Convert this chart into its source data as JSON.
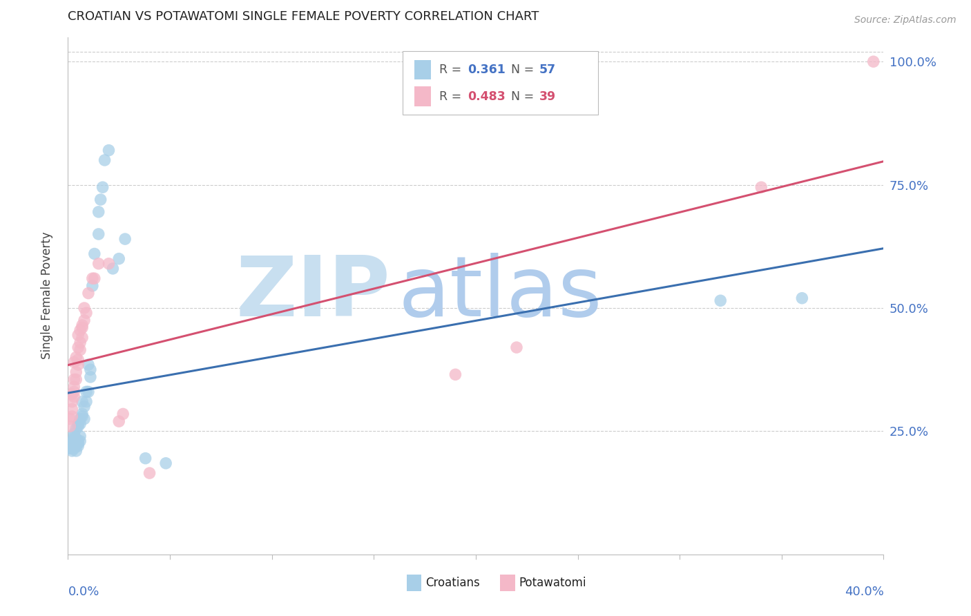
{
  "title": "CROATIAN VS POTAWATOMI SINGLE FEMALE POVERTY CORRELATION CHART",
  "source": "Source: ZipAtlas.com",
  "ylabel": "Single Female Poverty",
  "ytick_labels": [
    "25.0%",
    "50.0%",
    "75.0%",
    "100.0%"
  ],
  "ytick_positions": [
    0.25,
    0.5,
    0.75,
    1.0
  ],
  "legend_croatian_r": "0.361",
  "legend_croatian_n": "57",
  "legend_potawatomi_r": "0.483",
  "legend_potawatomi_n": "39",
  "blue_color": "#a8cfe8",
  "pink_color": "#f4b8c8",
  "blue_line_color": "#3a6faf",
  "pink_line_color": "#d45070",
  "blue_text_color": "#4472c4",
  "pink_text_color": "#d45070",
  "xlim": [
    0.0,
    0.4
  ],
  "ylim": [
    0.0,
    1.05
  ],
  "croatian_x": [
    0.001,
    0.001,
    0.001,
    0.002,
    0.002,
    0.002,
    0.002,
    0.002,
    0.002,
    0.003,
    0.003,
    0.003,
    0.003,
    0.003,
    0.003,
    0.003,
    0.004,
    0.004,
    0.004,
    0.004,
    0.004,
    0.004,
    0.005,
    0.005,
    0.005,
    0.005,
    0.005,
    0.006,
    0.006,
    0.006,
    0.006,
    0.007,
    0.007,
    0.007,
    0.008,
    0.008,
    0.009,
    0.009,
    0.01,
    0.01,
    0.011,
    0.011,
    0.012,
    0.013,
    0.015,
    0.015,
    0.016,
    0.017,
    0.018,
    0.02,
    0.022,
    0.025,
    0.028,
    0.038,
    0.048,
    0.32,
    0.36
  ],
  "croatian_y": [
    0.215,
    0.22,
    0.225,
    0.21,
    0.215,
    0.22,
    0.225,
    0.23,
    0.215,
    0.215,
    0.22,
    0.225,
    0.23,
    0.235,
    0.24,
    0.245,
    0.21,
    0.22,
    0.225,
    0.23,
    0.235,
    0.255,
    0.22,
    0.225,
    0.23,
    0.26,
    0.265,
    0.23,
    0.24,
    0.265,
    0.275,
    0.28,
    0.285,
    0.31,
    0.275,
    0.3,
    0.31,
    0.33,
    0.33,
    0.385,
    0.36,
    0.375,
    0.545,
    0.61,
    0.65,
    0.695,
    0.72,
    0.745,
    0.8,
    0.82,
    0.58,
    0.6,
    0.64,
    0.195,
    0.185,
    0.515,
    0.52
  ],
  "potawatomi_x": [
    0.001,
    0.001,
    0.002,
    0.002,
    0.002,
    0.002,
    0.003,
    0.003,
    0.003,
    0.003,
    0.003,
    0.004,
    0.004,
    0.004,
    0.005,
    0.005,
    0.005,
    0.005,
    0.006,
    0.006,
    0.006,
    0.007,
    0.007,
    0.007,
    0.008,
    0.008,
    0.009,
    0.01,
    0.012,
    0.013,
    0.015,
    0.02,
    0.025,
    0.027,
    0.04,
    0.19,
    0.22,
    0.34,
    0.395
  ],
  "potawatomi_y": [
    0.26,
    0.275,
    0.28,
    0.295,
    0.31,
    0.325,
    0.32,
    0.33,
    0.34,
    0.355,
    0.39,
    0.355,
    0.37,
    0.4,
    0.385,
    0.395,
    0.42,
    0.445,
    0.415,
    0.43,
    0.455,
    0.44,
    0.46,
    0.465,
    0.475,
    0.5,
    0.49,
    0.53,
    0.56,
    0.56,
    0.59,
    0.59,
    0.27,
    0.285,
    0.165,
    0.365,
    0.42,
    0.745,
    1.0
  ],
  "watermark_color": "#ccdff5",
  "background_color": "#ffffff",
  "grid_color": "#cccccc",
  "axis_label_color": "#4472c4",
  "title_color": "#222222"
}
